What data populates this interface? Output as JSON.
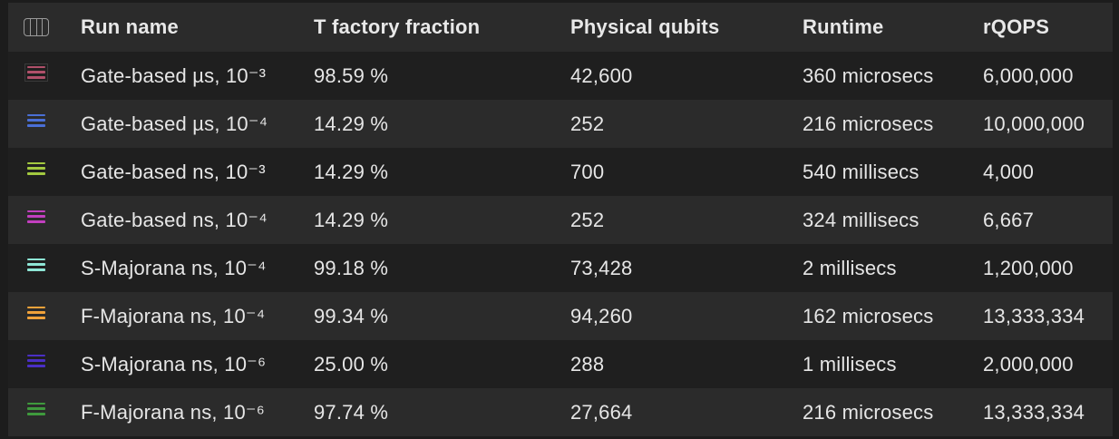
{
  "table": {
    "headers": {
      "run_name": "Run name",
      "t_factory_fraction": "T factory fraction",
      "physical_qubits": "Physical qubits",
      "runtime": "Runtime",
      "rqops": "rQOPS"
    },
    "rows": [
      {
        "swatch_color": "#b0506a",
        "swatch_icon": "legend-swatch-icon",
        "run_name": "Gate-based µs, 10⁻³",
        "t_factory_fraction": "98.59 %",
        "physical_qubits": "42,600",
        "runtime": "360 microsecs",
        "rqops": "6,000,000"
      },
      {
        "swatch_color": "#4a6fd6",
        "swatch_icon": "legend-swatch-icon",
        "run_name": "Gate-based µs, 10⁻⁴",
        "t_factory_fraction": "14.29 %",
        "physical_qubits": "252",
        "runtime": "216 microsecs",
        "rqops": "10,000,000"
      },
      {
        "swatch_color": "#a3c940",
        "swatch_icon": "legend-swatch-icon",
        "run_name": "Gate-based ns, 10⁻³",
        "t_factory_fraction": "14.29 %",
        "physical_qubits": "700",
        "runtime": "540 millisecs",
        "rqops": "4,000"
      },
      {
        "swatch_color": "#c23fbf",
        "swatch_icon": "legend-swatch-icon",
        "run_name": "Gate-based ns, 10⁻⁴",
        "t_factory_fraction": "14.29 %",
        "physical_qubits": "252",
        "runtime": "324 millisecs",
        "rqops": "6,667"
      },
      {
        "swatch_color": "#8ee6d6",
        "swatch_icon": "legend-swatch-icon",
        "run_name": "S-Majorana ns, 10⁻⁴",
        "t_factory_fraction": "99.18 %",
        "physical_qubits": "73,428",
        "runtime": "2 millisecs",
        "rqops": "1,200,000"
      },
      {
        "swatch_color": "#f0a23a",
        "swatch_icon": "legend-swatch-icon",
        "run_name": "F-Majorana ns, 10⁻⁴",
        "t_factory_fraction": "99.34 %",
        "physical_qubits": "94,260",
        "runtime": "162 microsecs",
        "rqops": "13,333,334"
      },
      {
        "swatch_color": "#4a2fc4",
        "swatch_icon": "legend-swatch-icon",
        "run_name": "S-Majorana ns, 10⁻⁶",
        "t_factory_fraction": "25.00 %",
        "physical_qubits": "288",
        "runtime": "1 millisecs",
        "rqops": "2,000,000"
      },
      {
        "swatch_color": "#3f9a3d",
        "swatch_icon": "legend-swatch-icon",
        "run_name": "F-Majorana ns, 10⁻⁶",
        "t_factory_fraction": "97.74 %",
        "physical_qubits": "27,664",
        "runtime": "216 microsecs",
        "rqops": "13,333,334"
      }
    ]
  },
  "icons": {
    "column_chooser": "column-chooser-icon"
  }
}
